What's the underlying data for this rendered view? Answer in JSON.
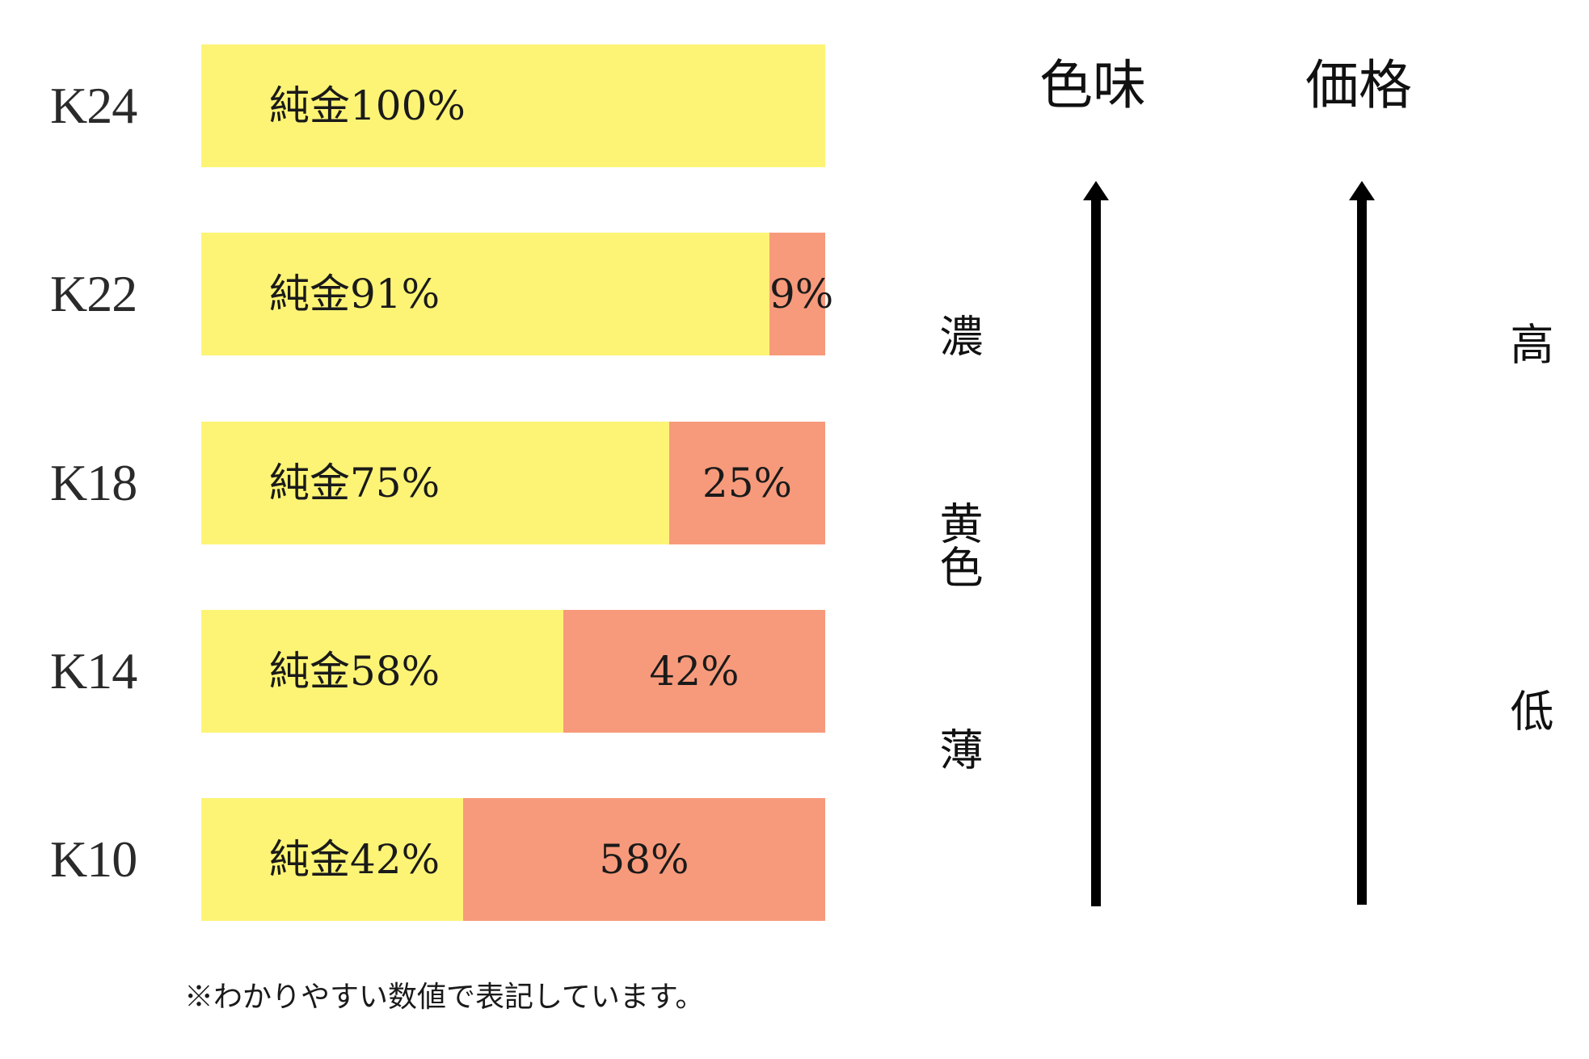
{
  "chart_data": {
    "type": "bar",
    "stacked": true,
    "orientation": "horizontal",
    "categories": [
      "K24",
      "K22",
      "K18",
      "K14",
      "K10"
    ],
    "series": [
      {
        "name": "純金",
        "values": [
          100,
          91,
          75,
          58,
          42
        ],
        "labels": [
          "純金100%",
          "純金91%",
          "純金75%",
          "純金58%",
          "純金42%"
        ],
        "color": "#fdf475"
      },
      {
        "values": [
          0,
          9,
          25,
          42,
          58
        ],
        "labels": [
          "",
          "9%",
          "25%",
          "42%",
          "58%"
        ],
        "color": "#f79a7b"
      }
    ],
    "xlim": [
      0,
      100
    ]
  },
  "footnote": "※わかりやすい数値で表記しています。",
  "scales": {
    "color": {
      "title": "色味",
      "high": "濃",
      "middle": "黄色",
      "low": "薄"
    },
    "price": {
      "title": "価格",
      "high": "高",
      "low": "低"
    }
  },
  "colors": {
    "gold": "#fdf475",
    "alloy": "#f79a7b",
    "arrow": "#000000"
  }
}
